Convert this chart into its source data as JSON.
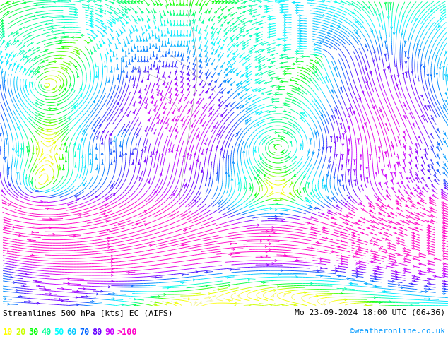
{
  "title_left": "Streamlines 500 hPa [kts] EC (AIFS)",
  "title_right": "Mo 23-09-2024 18:00 UTC (06+36)",
  "credit": "©weatheronline.co.uk",
  "legend_values": [
    "10",
    "20",
    "30",
    "40",
    "50",
    "60",
    "70",
    "80",
    "90",
    ">100"
  ],
  "legend_colors": [
    "#ffff00",
    "#c8ff00",
    "#00ff00",
    "#00ff96",
    "#00ffff",
    "#00c8ff",
    "#0064ff",
    "#6400ff",
    "#c800ff",
    "#ff00c8"
  ],
  "bg_color": "#ffffff",
  "fig_width": 6.34,
  "fig_height": 4.9,
  "dpi": 100,
  "colormap_nodes": [
    [
      0.0,
      "#f0f0f0"
    ],
    [
      0.08,
      "#ffff00"
    ],
    [
      0.18,
      "#c8ff00"
    ],
    [
      0.28,
      "#00ff00"
    ],
    [
      0.38,
      "#00ff96"
    ],
    [
      0.48,
      "#00ffff"
    ],
    [
      0.58,
      "#00c8ff"
    ],
    [
      0.68,
      "#0064ff"
    ],
    [
      0.78,
      "#6400ff"
    ],
    [
      0.88,
      "#c800ff"
    ],
    [
      1.0,
      "#ff00c8"
    ]
  ]
}
